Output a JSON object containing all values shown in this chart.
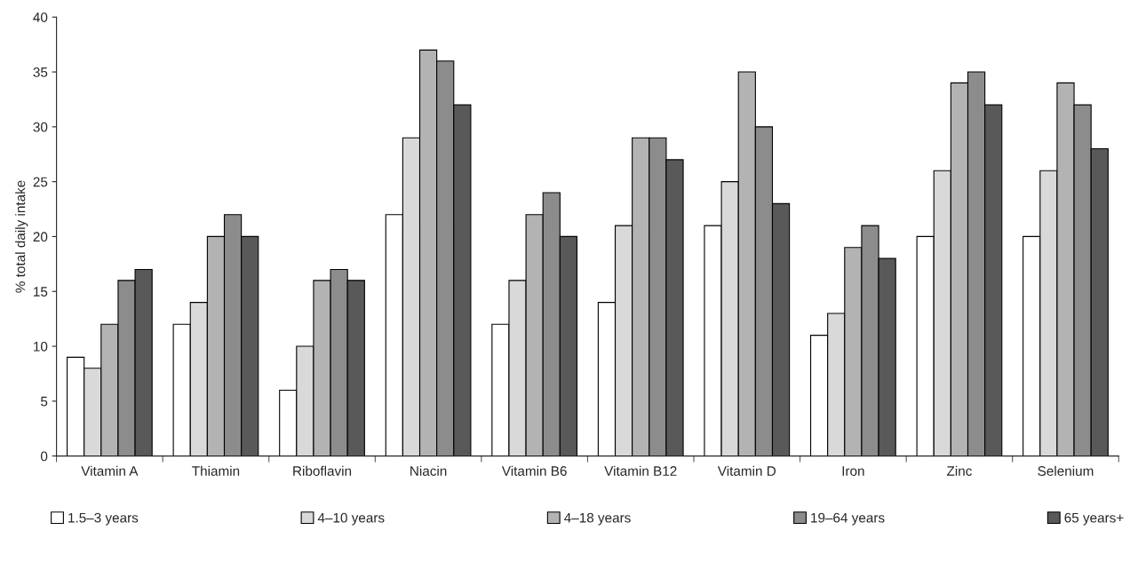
{
  "chart_data": {
    "type": "bar",
    "ylabel": "% total daily intake",
    "categories": [
      "Vitamin A",
      "Thiamin",
      "Riboflavin",
      "Niacin",
      "Vitamin B6",
      "Vitamin B12",
      "Vitamin D",
      "Iron",
      "Zinc",
      "Selenium"
    ],
    "series": [
      {
        "name": "1.5–3 years",
        "color": "#ffffff",
        "values": [
          9,
          12,
          6,
          22,
          12,
          14,
          21,
          11,
          20,
          20
        ]
      },
      {
        "name": "4–10 years",
        "color": "#d9d9d9",
        "values": [
          8,
          14,
          10,
          29,
          16,
          21,
          25,
          13,
          26,
          26
        ]
      },
      {
        "name": "4–18 years",
        "color": "#b3b3b3",
        "values": [
          12,
          20,
          16,
          37,
          22,
          29,
          35,
          19,
          34,
          34
        ]
      },
      {
        "name": "19–64 years",
        "color": "#8c8c8c",
        "values": [
          16,
          22,
          17,
          36,
          24,
          29,
          30,
          21,
          35,
          32
        ]
      },
      {
        "name": "65 years+",
        "color": "#595959",
        "values": [
          17,
          20,
          16,
          32,
          20,
          27,
          23,
          18,
          32,
          28
        ]
      }
    ],
    "ylim": [
      0,
      40
    ],
    "yticks": [
      0,
      5,
      10,
      15,
      20,
      25,
      30,
      35,
      40
    ],
    "grid": false,
    "legend": "bottom"
  }
}
